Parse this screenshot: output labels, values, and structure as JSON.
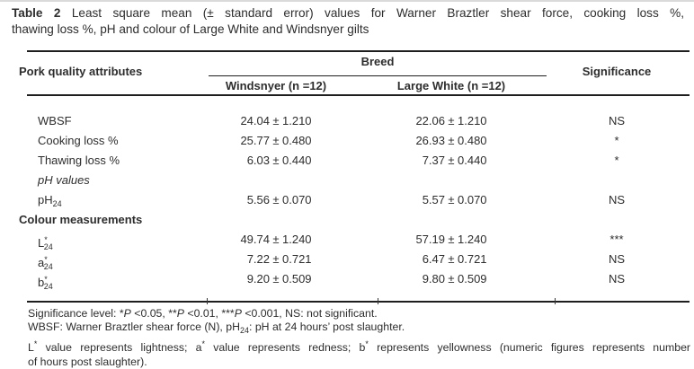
{
  "page": {
    "background": "#ffffff",
    "text_color": "#2d2d2d",
    "rule_color": "#1e1e1e"
  },
  "title": {
    "bold": "Table 2",
    "line1_rest": "Least square mean (± standard error) values for Warner Braztler shear force, cooking loss %,",
    "line2": "thawing loss %, pH and colour of Large White and Windsnyer gilts"
  },
  "table": {
    "attributes_header": "Pork quality attributes",
    "breed_header": "Breed",
    "windsnyer_header": "Windsnyer (n =12)",
    "large_white_header": "Large White (n =12)",
    "significance_header": "Significance",
    "rows": [
      {
        "kind": "data",
        "label": [
          {
            "t": "WBSF"
          }
        ],
        "windsnyer": {
          "mean": "24.04",
          "err": "1.210"
        },
        "large_white": {
          "mean": "22.06",
          "err": "1.210"
        },
        "sig": "NS"
      },
      {
        "kind": "data",
        "label": [
          {
            "t": "Cooking loss %"
          }
        ],
        "windsnyer": {
          "mean": "25.77",
          "err": "0.480"
        },
        "large_white": {
          "mean": "26.93",
          "err": "0.480"
        },
        "sig": "*"
      },
      {
        "kind": "data",
        "label": [
          {
            "t": "Thawing loss %"
          }
        ],
        "windsnyer": {
          "mean": "6.03",
          "err": "0.440"
        },
        "large_white": {
          "mean": "7.37",
          "err": "0.440"
        },
        "sig": "*"
      },
      {
        "kind": "section",
        "style": "italic",
        "label": [
          {
            "t": "pH values"
          }
        ]
      },
      {
        "kind": "data",
        "label": [
          {
            "t": "pH"
          },
          {
            "t": "24",
            "s": "sub"
          }
        ],
        "windsnyer": {
          "mean": "5.56",
          "err": "0.070"
        },
        "large_white": {
          "mean": "5.57",
          "err": "0.070"
        },
        "sig": "NS"
      },
      {
        "kind": "section",
        "style": "bold",
        "label": [
          {
            "t": "Colour measurements"
          }
        ]
      },
      {
        "kind": "data",
        "label": [
          {
            "t": "L"
          },
          {
            "t": "*",
            "s": "sup"
          },
          {
            "t": "24",
            "s": "sub"
          }
        ],
        "windsnyer": {
          "mean": "49.74",
          "err": "1.240"
        },
        "large_white": {
          "mean": "57.19",
          "err": "1.240"
        },
        "sig": "***"
      },
      {
        "kind": "data",
        "label": [
          {
            "t": "a"
          },
          {
            "t": "*",
            "s": "sup"
          },
          {
            "t": "24",
            "s": "sub"
          }
        ],
        "windsnyer": {
          "mean": "7.22",
          "err": "0.721"
        },
        "large_white": {
          "mean": "6.47",
          "err": "0.721"
        },
        "sig": "NS"
      },
      {
        "kind": "data",
        "label": [
          {
            "t": "b"
          },
          {
            "t": "*",
            "s": "sup"
          },
          {
            "t": "24",
            "s": "sub"
          }
        ],
        "windsnyer": {
          "mean": "9.20",
          "err": "0.509"
        },
        "large_white": {
          "mean": "9.80",
          "err": "0.509"
        },
        "sig": "NS"
      }
    ]
  },
  "footnotes": [
    {
      "segments": [
        {
          "t": "Significance level: *"
        },
        {
          "t": "P",
          "s": "i"
        },
        {
          "t": " <0.05, **"
        },
        {
          "t": "P",
          "s": "i"
        },
        {
          "t": " <0.01, ***"
        },
        {
          "t": "P",
          "s": "i"
        },
        {
          "t": " <0.001, NS: not significant."
        }
      ]
    },
    {
      "segments": [
        {
          "t": "WBSF: Warner Braztler shear force (N), pH"
        },
        {
          "t": "24",
          "s": "sub"
        },
        {
          "t": ": pH at 24 hours’ post slaughter."
        }
      ]
    },
    {
      "justify": true,
      "segments": [
        {
          "t": "L"
        },
        {
          "t": "*",
          "s": "sup"
        },
        {
          "t": " value represents lightness; a"
        },
        {
          "t": "*",
          "s": "sup"
        },
        {
          "t": " value represents redness; b"
        },
        {
          "t": "*",
          "s": "sup"
        },
        {
          "t": " represents yellowness (numeric figures represents number"
        }
      ]
    },
    {
      "segments": [
        {
          "t": "of hours post slaughter)."
        }
      ]
    }
  ]
}
